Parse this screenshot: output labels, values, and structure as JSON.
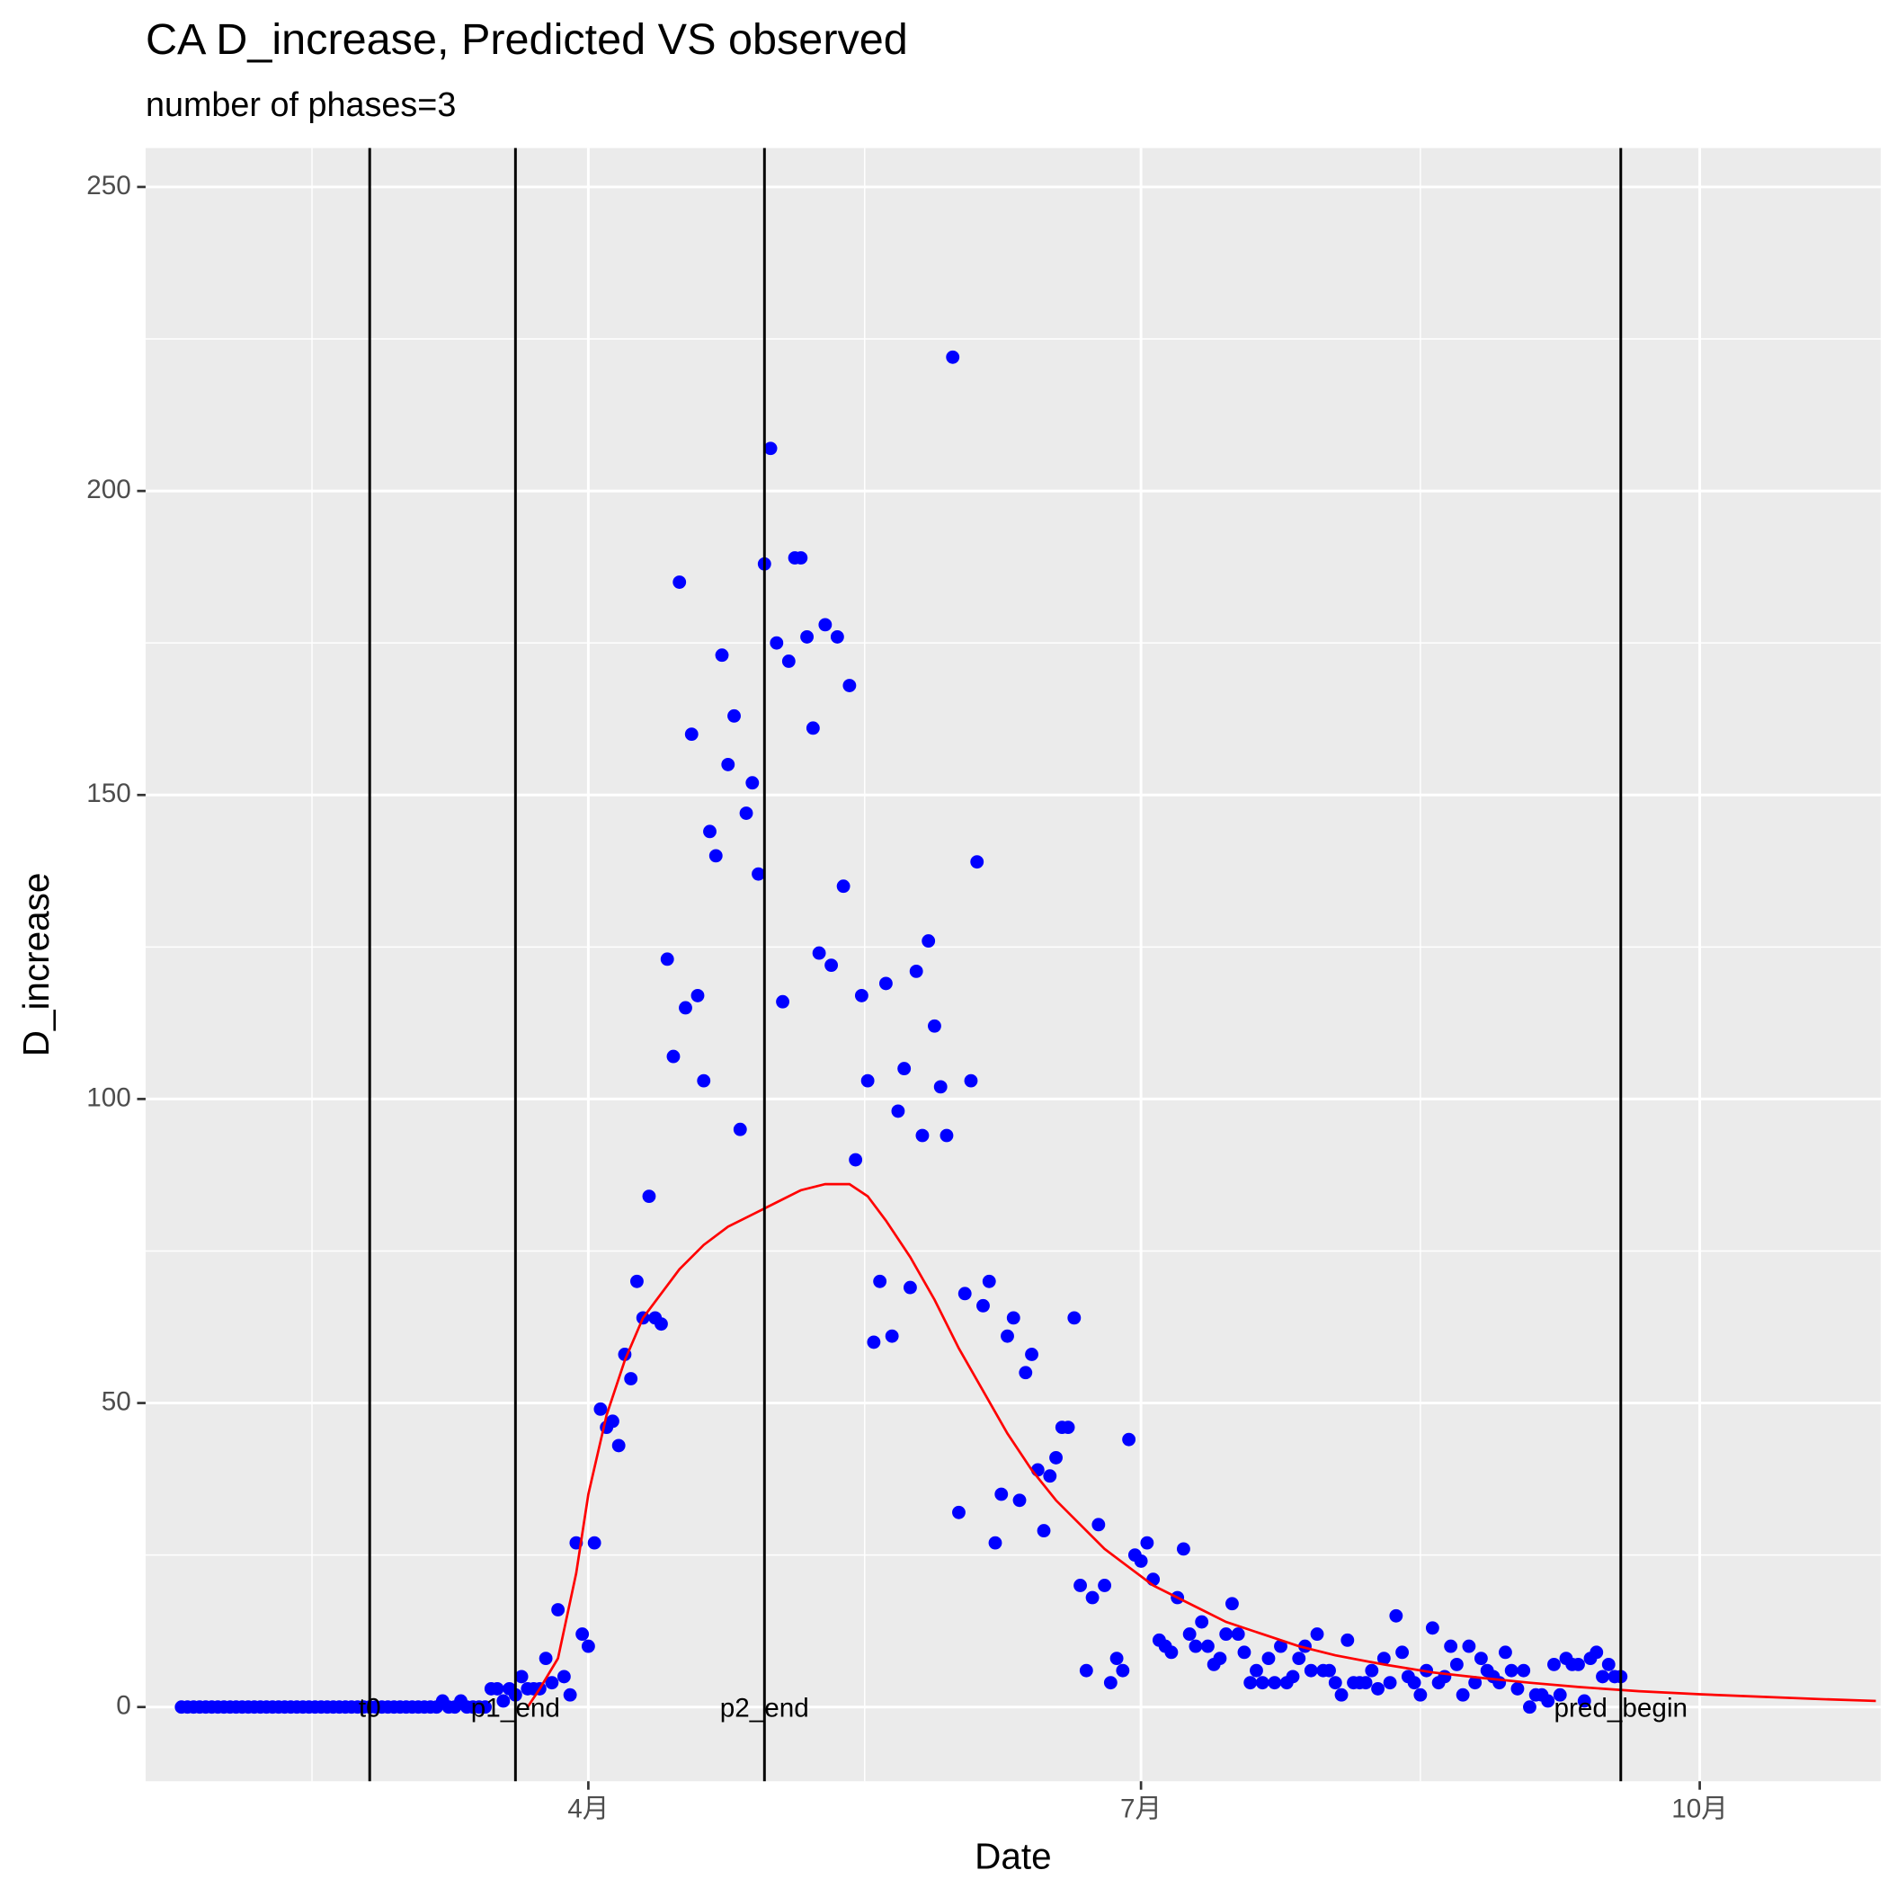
{
  "chart_data": {
    "type": "scatter",
    "title": "CA D_increase, Predicted VS observed",
    "subtitle": "number of phases=3",
    "x_label": "Date",
    "y_label": "D_increase",
    "xlim": [
      19.1,
      304.8
    ],
    "ylim": [
      -12.2,
      256.4
    ],
    "xticks": [
      {
        "value": 92,
        "label": "4月"
      },
      {
        "value": 183,
        "label": "7月"
      },
      {
        "value": 275,
        "label": "10月"
      }
    ],
    "yticks": [
      0,
      50,
      100,
      150,
      200,
      250
    ],
    "grid": true,
    "minor_grid": true,
    "vlines": [
      {
        "x": 56,
        "label": "t0"
      },
      {
        "x": 80,
        "label": "p1_end"
      },
      {
        "x": 121,
        "label": "p2_end"
      },
      {
        "x": 262,
        "label": "pred_begin"
      }
    ],
    "series": [
      {
        "type": "point",
        "color": "#0000ff",
        "x": [
          25,
          26,
          27,
          28,
          29,
          30,
          31,
          32,
          33,
          34,
          35,
          36,
          37,
          38,
          39,
          40,
          41,
          42,
          43,
          44,
          45,
          46,
          47,
          48,
          49,
          50,
          51,
          52,
          53,
          54,
          55,
          56,
          57,
          58,
          59,
          60,
          61,
          62,
          63,
          64,
          65,
          66,
          67,
          68,
          69,
          70,
          71,
          72,
          73,
          74,
          75,
          76,
          77,
          78,
          79,
          80,
          81,
          82,
          83,
          84,
          85,
          86,
          87,
          88,
          89,
          90,
          91,
          92,
          93,
          94,
          95,
          96,
          97,
          98,
          99,
          100,
          101,
          102,
          103,
          104,
          105,
          106,
          107,
          108,
          109,
          110,
          111,
          112,
          113,
          114,
          115,
          116,
          117,
          118,
          119,
          120,
          121,
          122,
          123,
          124,
          125,
          126,
          127,
          128,
          129,
          130,
          131,
          132,
          133,
          134,
          135,
          136,
          137,
          138,
          139,
          140,
          141,
          142,
          143,
          144,
          145,
          146,
          147,
          148,
          149,
          150,
          151,
          152,
          153,
          154,
          155,
          156,
          157,
          158,
          159,
          160,
          161,
          162,
          163,
          164,
          165,
          166,
          167,
          168,
          169,
          170,
          171,
          172,
          173,
          174,
          175,
          176,
          177,
          178,
          179,
          180,
          181,
          182,
          183,
          184,
          185,
          186,
          187,
          188,
          189,
          190,
          191,
          192,
          193,
          194,
          195,
          196,
          197,
          198,
          199,
          200,
          201,
          202,
          203,
          204,
          205,
          206,
          207,
          208,
          209,
          210,
          211,
          212,
          213,
          214,
          215,
          216,
          217,
          218,
          219,
          220,
          221,
          222,
          223,
          224,
          225,
          226,
          227,
          228,
          229,
          230,
          231,
          232,
          233,
          234,
          235,
          236,
          237,
          238,
          239,
          240,
          241,
          242,
          243,
          244,
          245,
          246,
          247,
          248,
          249,
          250,
          251,
          252,
          253,
          254,
          255,
          256,
          257,
          258,
          259,
          260,
          261,
          262
        ],
        "values": [
          0,
          0,
          0,
          0,
          0,
          0,
          0,
          0,
          0,
          0,
          0,
          0,
          0,
          0,
          0,
          0,
          0,
          0,
          0,
          0,
          0,
          0,
          0,
          0,
          0,
          0,
          0,
          0,
          0,
          0,
          0,
          0,
          0,
          0,
          0,
          0,
          0,
          0,
          0,
          0,
          0,
          0,
          0,
          1,
          0,
          0,
          1,
          0,
          0,
          0,
          0,
          3,
          3,
          1,
          3,
          2,
          5,
          3,
          3,
          3,
          8,
          4,
          16,
          5,
          2,
          27,
          12,
          10,
          27,
          49,
          46,
          47,
          43,
          58,
          54,
          70,
          64,
          84,
          64,
          63,
          123,
          107,
          185,
          115,
          160,
          117,
          103,
          144,
          140,
          173,
          155,
          163,
          95,
          147,
          152,
          137,
          188,
          207,
          175,
          116,
          172,
          189,
          189,
          176,
          161,
          124,
          178,
          122,
          176,
          135,
          168,
          90,
          117,
          103,
          60,
          70,
          119,
          61,
          98,
          105,
          69,
          121,
          94,
          126,
          112,
          102,
          94,
          222,
          32,
          68,
          103,
          139,
          66,
          70,
          27,
          35,
          61,
          64,
          34,
          55,
          58,
          39,
          29,
          38,
          41,
          46,
          46,
          64,
          20,
          6,
          18,
          30,
          20,
          4,
          8,
          6,
          44,
          25,
          24,
          27,
          21,
          11,
          10,
          9,
          18,
          26,
          12,
          10,
          14,
          10,
          7,
          8,
          12,
          17,
          12,
          9,
          4,
          6,
          4,
          8,
          4,
          10,
          4,
          5,
          8,
          10,
          6,
          12,
          6,
          6,
          4,
          2,
          11,
          4,
          4,
          4,
          6,
          3,
          8,
          4,
          15,
          9,
          5,
          4,
          2,
          6,
          13,
          4,
          5,
          10,
          7,
          2,
          10,
          4,
          8,
          6,
          5,
          4,
          9,
          6,
          3,
          6,
          0,
          2,
          2,
          1,
          7,
          2,
          8,
          7,
          7,
          1,
          8,
          9,
          5,
          7,
          5,
          5
        ]
      },
      {
        "type": "line",
        "color": "#ff0000",
        "x": [
          82,
          84,
          87,
          90,
          92,
          95,
          98,
          101,
          104,
          107,
          111,
          115,
          119,
          123,
          127,
          131,
          135,
          138,
          141,
          145,
          149,
          153,
          157,
          161,
          165,
          169,
          173,
          177,
          181,
          185,
          189,
          193,
          197,
          203,
          209,
          215,
          223,
          231,
          239,
          247,
          255,
          265,
          275,
          285,
          295,
          304
        ],
        "values": [
          0,
          3,
          8,
          22,
          35,
          48,
          57,
          64,
          68,
          72,
          76,
          79,
          81,
          83,
          85,
          86,
          86,
          84,
          80,
          74,
          67,
          59,
          52,
          45,
          39,
          34,
          30,
          26,
          23,
          20,
          18,
          16,
          14,
          12,
          10,
          8.5,
          7,
          5.7,
          4.8,
          4,
          3.3,
          2.6,
          2.1,
          1.7,
          1.3,
          1
        ]
      }
    ]
  }
}
